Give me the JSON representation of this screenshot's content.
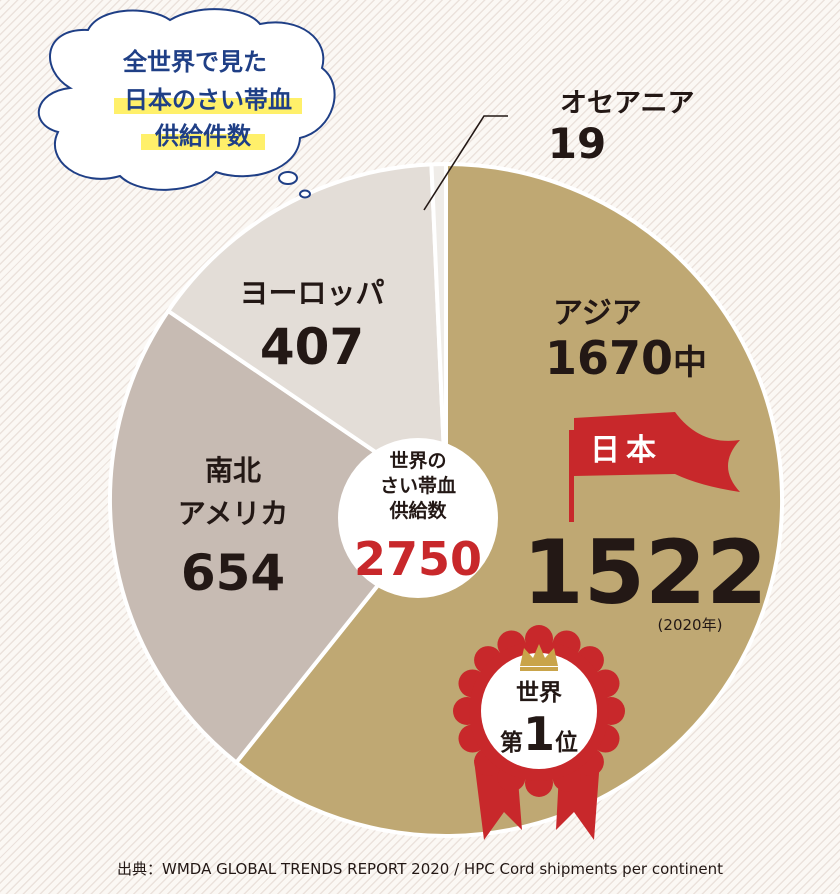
{
  "callout": {
    "lines": [
      "全世界で見た",
      "日本のさい帯血",
      "供給件数"
    ]
  },
  "chart_data": {
    "type": "pie",
    "title": "世界のさい帯血供給数",
    "total": 2750,
    "slices": [
      {
        "label": "アジア",
        "value": 1670,
        "color": "#bfa873"
      },
      {
        "label": "南北アメリカ",
        "value": 654,
        "color": "#c7bbb3"
      },
      {
        "label": "ヨーロッパ",
        "value": 407,
        "color": "#e3ddd7"
      },
      {
        "label": "オセアニア",
        "value": 19,
        "color": "#efece8"
      }
    ],
    "slice_texts": {
      "asia_label": "アジア",
      "asia_value": "1670",
      "asia_suffix": "中",
      "americas_label_1": "南北",
      "americas_label_2": "アメリカ",
      "americas_value": "654",
      "europe_label": "ヨーロッパ",
      "europe_value": "407",
      "oceania_label": "オセアニア",
      "oceania_value": "19"
    },
    "center": {
      "lines": [
        "世界の",
        "さい帯血",
        "供給数"
      ],
      "value": "2750"
    },
    "japan": {
      "flag_label": "日本",
      "value": "1522",
      "year_note": "(2020年)"
    },
    "badge": {
      "line1": "世界",
      "prefix": "第",
      "rank": "1",
      "suffix": "位"
    }
  },
  "colors": {
    "accent_red": "#c8282b",
    "cloud_text": "#1f3f86",
    "highlight": "#fff06a"
  },
  "footer": {
    "source": "出典：WMDA GLOBAL TRENDS REPORT 2020 / HPC Cord shipments per continent"
  }
}
